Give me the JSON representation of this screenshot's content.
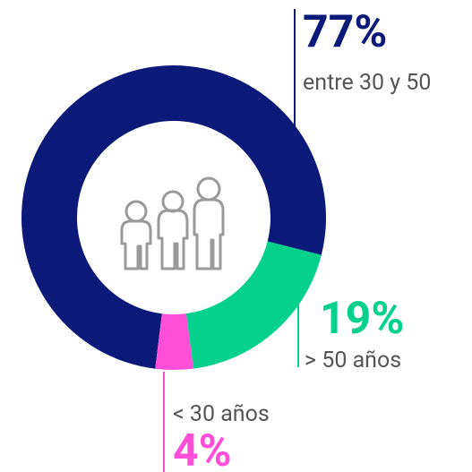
{
  "chart_data": {
    "type": "pie",
    "categories": [
      "entre 30 y 50",
      "> 50 años",
      "< 30 años"
    ],
    "values": [
      77,
      19,
      4
    ],
    "value_labels": [
      "77%",
      "19%",
      "4%"
    ],
    "colors": [
      "#0b1a78",
      "#05d18c",
      "#ff4fd8"
    ]
  }
}
